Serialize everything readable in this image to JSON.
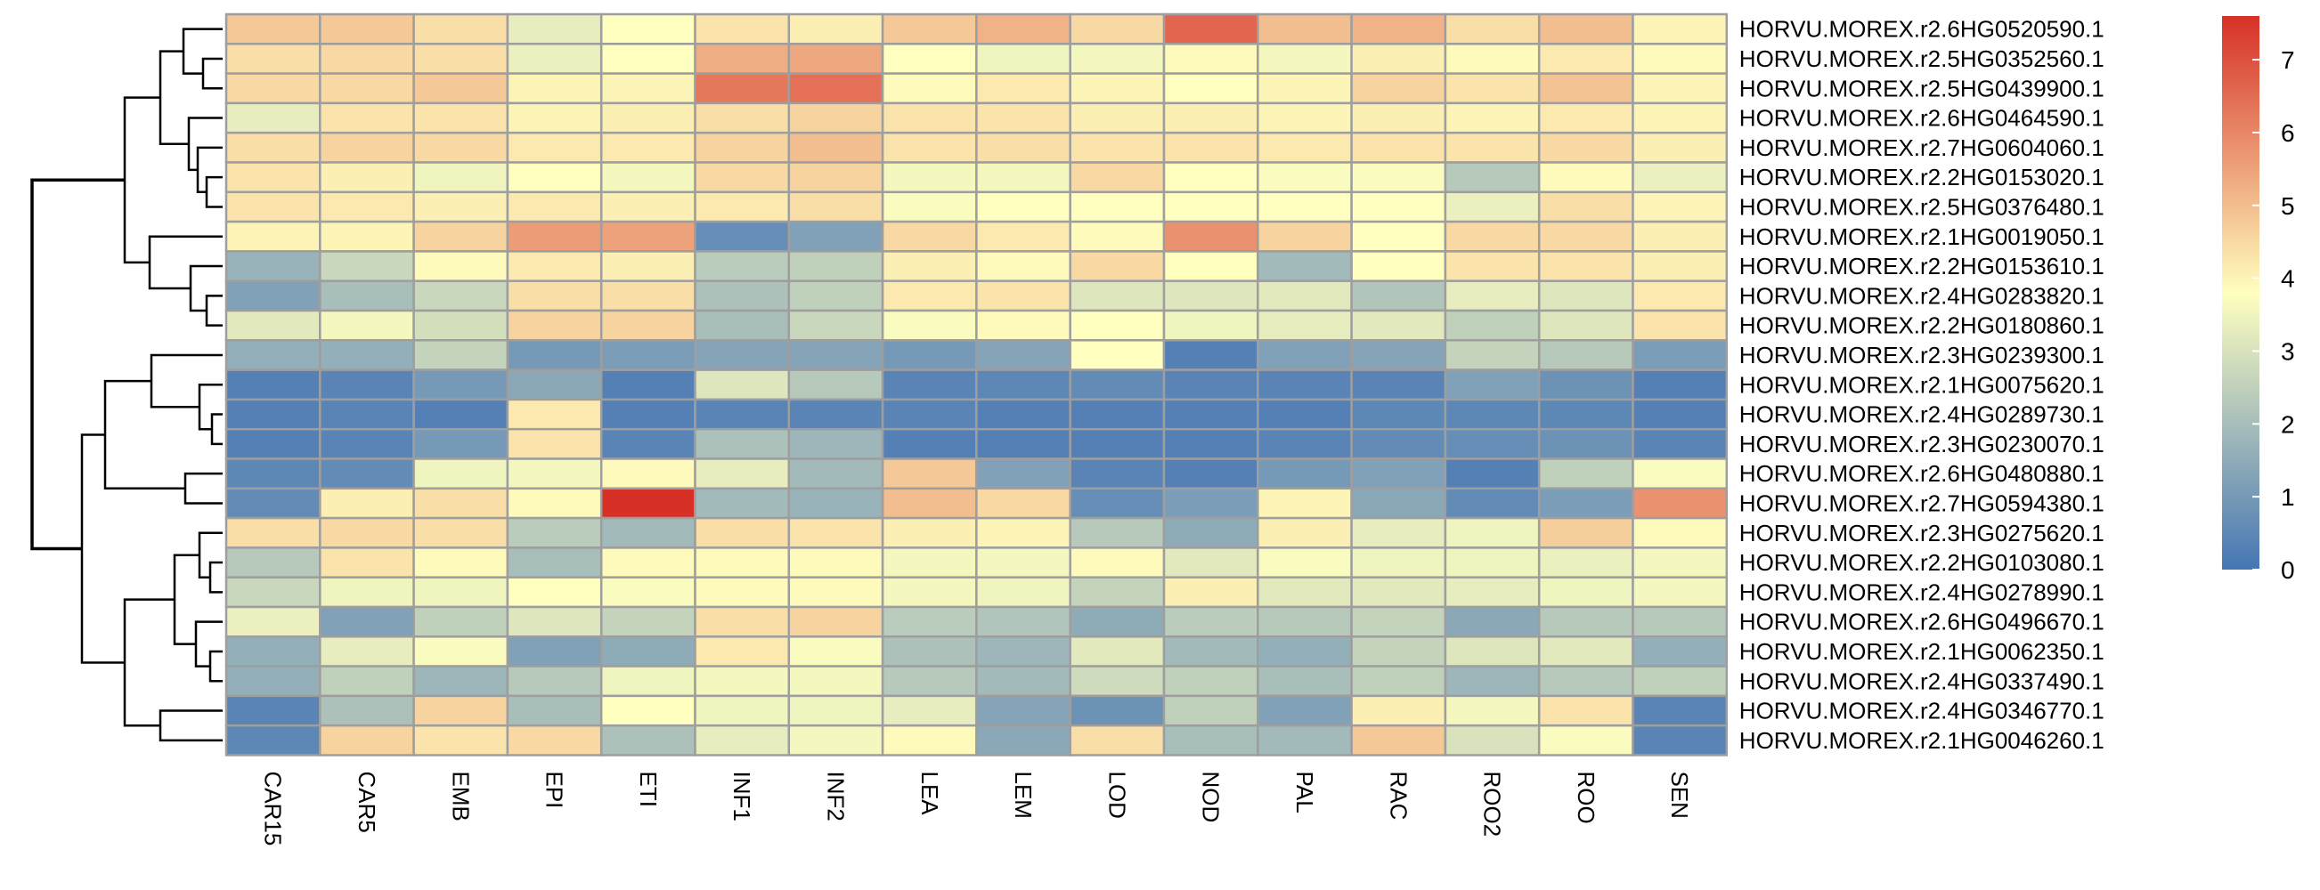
{
  "chart_data": {
    "type": "heatmap",
    "title": "",
    "columns": [
      "CAR15",
      "CAR5",
      "EMB",
      "EPI",
      "ETI",
      "INF1",
      "INF2",
      "LEA",
      "LEM",
      "LOD",
      "NOD",
      "PAL",
      "RAC",
      "ROO2",
      "ROO",
      "SEN"
    ],
    "rows": [
      "HORVU.MOREX.r2.6HG0520590.1",
      "HORVU.MOREX.r2.5HG0352560.1",
      "HORVU.MOREX.r2.5HG0439900.1",
      "HORVU.MOREX.r2.6HG0464590.1",
      "HORVU.MOREX.r2.7HG0604060.1",
      "HORVU.MOREX.r2.2HG0153020.1",
      "HORVU.MOREX.r2.5HG0376480.1",
      "HORVU.MOREX.r2.1HG0019050.1",
      "HORVU.MOREX.r2.2HG0153610.1",
      "HORVU.MOREX.r2.4HG0283820.1",
      "HORVU.MOREX.r2.2HG0180860.1",
      "HORVU.MOREX.r2.3HG0239300.1",
      "HORVU.MOREX.r2.1HG0075620.1",
      "HORVU.MOREX.r2.4HG0289730.1",
      "HORVU.MOREX.r2.3HG0230070.1",
      "HORVU.MOREX.r2.6HG0480880.1",
      "HORVU.MOREX.r2.7HG0594380.1",
      "HORVU.MOREX.r2.3HG0275620.1",
      "HORVU.MOREX.r2.2HG0103080.1",
      "HORVU.MOREX.r2.4HG0278990.1",
      "HORVU.MOREX.r2.6HG0496670.1",
      "HORVU.MOREX.r2.1HG0062350.1",
      "HORVU.MOREX.r2.4HG0337490.1",
      "HORVU.MOREX.r2.4HG0346770.1",
      "HORVU.MOREX.r2.1HG0046260.1"
    ],
    "values": [
      [
        4.8,
        4.8,
        4.4,
        3.3,
        3.8,
        4.3,
        4.1,
        4.8,
        5.2,
        4.5,
        6.6,
        5.0,
        5.2,
        4.4,
        5.0,
        4.0
      ],
      [
        4.4,
        4.5,
        4.4,
        3.4,
        3.8,
        5.3,
        5.4,
        3.8,
        3.5,
        3.6,
        3.9,
        3.6,
        4.1,
        3.9,
        4.2,
        3.9
      ],
      [
        4.5,
        4.5,
        4.8,
        4.0,
        4.0,
        6.3,
        6.4,
        3.9,
        4.2,
        4.0,
        3.8,
        4.0,
        4.6,
        4.3,
        4.9,
        4.0
      ],
      [
        3.3,
        4.3,
        4.3,
        4.0,
        4.1,
        4.4,
        4.6,
        4.3,
        4.3,
        4.1,
        4.1,
        4.0,
        4.1,
        4.0,
        4.2,
        4.0
      ],
      [
        4.4,
        4.6,
        4.5,
        4.2,
        4.2,
        4.6,
        5.0,
        4.3,
        4.4,
        4.3,
        4.3,
        4.2,
        4.3,
        4.3,
        4.5,
        4.1
      ],
      [
        4.3,
        4.1,
        3.5,
        3.8,
        3.6,
        4.5,
        4.6,
        3.6,
        3.6,
        4.5,
        3.8,
        3.7,
        3.7,
        2.3,
        3.9,
        3.4
      ],
      [
        4.3,
        4.2,
        4.1,
        4.2,
        4.1,
        4.2,
        4.4,
        3.7,
        3.8,
        3.8,
        3.8,
        3.8,
        3.8,
        3.4,
        4.4,
        4.0
      ],
      [
        4.0,
        4.0,
        4.6,
        5.6,
        5.5,
        0.7,
        1.2,
        4.5,
        4.2,
        3.9,
        5.8,
        4.6,
        3.8,
        4.5,
        4.5,
        4.1
      ],
      [
        1.7,
        2.7,
        3.9,
        4.2,
        4.1,
        2.4,
        2.5,
        4.1,
        3.9,
        4.5,
        3.8,
        1.9,
        3.8,
        4.3,
        4.3,
        4.1
      ],
      [
        1.2,
        2.0,
        2.7,
        4.4,
        4.4,
        2.1,
        2.5,
        4.2,
        4.3,
        3.1,
        3.1,
        3.2,
        2.2,
        3.3,
        3.1,
        4.2
      ],
      [
        3.2,
        3.6,
        2.9,
        4.6,
        4.6,
        2.0,
        2.7,
        3.7,
        3.9,
        3.8,
        3.5,
        3.3,
        3.2,
        2.5,
        3.1,
        4.3
      ],
      [
        1.6,
        1.6,
        2.6,
        1.0,
        1.1,
        1.3,
        1.3,
        1.0,
        1.3,
        3.8,
        0.3,
        1.2,
        1.3,
        2.6,
        2.3,
        1.1
      ],
      [
        0.3,
        0.4,
        1.0,
        1.4,
        0.3,
        3.1,
        2.3,
        0.4,
        0.5,
        0.6,
        0.4,
        0.4,
        0.4,
        1.2,
        0.8,
        0.3
      ],
      [
        0.3,
        0.4,
        0.3,
        4.2,
        0.3,
        0.4,
        0.4,
        0.4,
        0.3,
        0.3,
        0.3,
        0.3,
        0.5,
        0.5,
        0.5,
        0.3
      ],
      [
        0.3,
        0.4,
        1.0,
        4.3,
        0.4,
        2.1,
        1.8,
        0.3,
        0.3,
        0.3,
        0.3,
        0.4,
        0.6,
        0.7,
        0.8,
        0.4
      ],
      [
        0.5,
        0.6,
        3.5,
        3.6,
        3.9,
        3.3,
        1.9,
        4.8,
        1.2,
        0.4,
        0.3,
        1.0,
        1.2,
        0.3,
        2.5,
        3.7
      ],
      [
        0.6,
        4.1,
        4.4,
        3.9,
        7.6,
        1.9,
        1.7,
        5.0,
        4.5,
        0.7,
        1.1,
        4.0,
        1.4,
        0.6,
        1.1,
        5.8
      ],
      [
        4.4,
        4.5,
        4.4,
        2.4,
        1.9,
        4.4,
        4.3,
        4.1,
        4.0,
        2.3,
        1.5,
        4.1,
        3.3,
        3.5,
        4.7,
        3.9
      ],
      [
        2.3,
        4.3,
        3.9,
        2.0,
        3.9,
        3.9,
        3.9,
        3.6,
        3.6,
        3.9,
        3.2,
        3.7,
        3.5,
        3.5,
        3.4,
        3.6
      ],
      [
        2.7,
        3.5,
        3.5,
        3.8,
        3.7,
        3.9,
        3.9,
        3.6,
        3.5,
        2.6,
        4.1,
        3.2,
        3.2,
        3.3,
        3.5,
        3.6
      ],
      [
        3.4,
        1.2,
        2.5,
        3.1,
        2.6,
        4.4,
        4.6,
        2.4,
        2.2,
        1.5,
        2.4,
        2.3,
        2.6,
        1.4,
        2.3,
        2.3
      ],
      [
        1.6,
        3.3,
        3.7,
        1.2,
        1.5,
        4.2,
        3.7,
        2.1,
        1.8,
        3.2,
        1.9,
        1.6,
        2.6,
        3.1,
        3.2,
        1.6
      ],
      [
        1.6,
        2.5,
        1.8,
        2.3,
        3.5,
        3.6,
        3.6,
        2.3,
        1.9,
        2.8,
        2.5,
        2.0,
        2.5,
        1.8,
        2.3,
        2.5
      ],
      [
        0.4,
        2.1,
        4.6,
        2.0,
        3.8,
        3.5,
        3.5,
        3.3,
        1.3,
        0.8,
        2.5,
        1.2,
        4.1,
        3.6,
        4.3,
        0.4
      ],
      [
        0.5,
        4.6,
        4.3,
        4.5,
        2.1,
        3.3,
        3.6,
        3.9,
        1.4,
        4.4,
        2.0,
        1.9,
        4.8,
        3.0,
        3.7,
        0.4
      ]
    ],
    "color_scale": {
      "min": 0,
      "max": 7.6,
      "low_color": "#4575b4",
      "mid_color": "#ffffbf",
      "high_color": "#d73027",
      "legend_ticks": [
        0,
        1,
        2,
        3,
        4,
        5,
        6,
        7
      ]
    },
    "cell_border_color": "#9e9e9e",
    "dendrogram": "rows",
    "legend_position": "right"
  }
}
